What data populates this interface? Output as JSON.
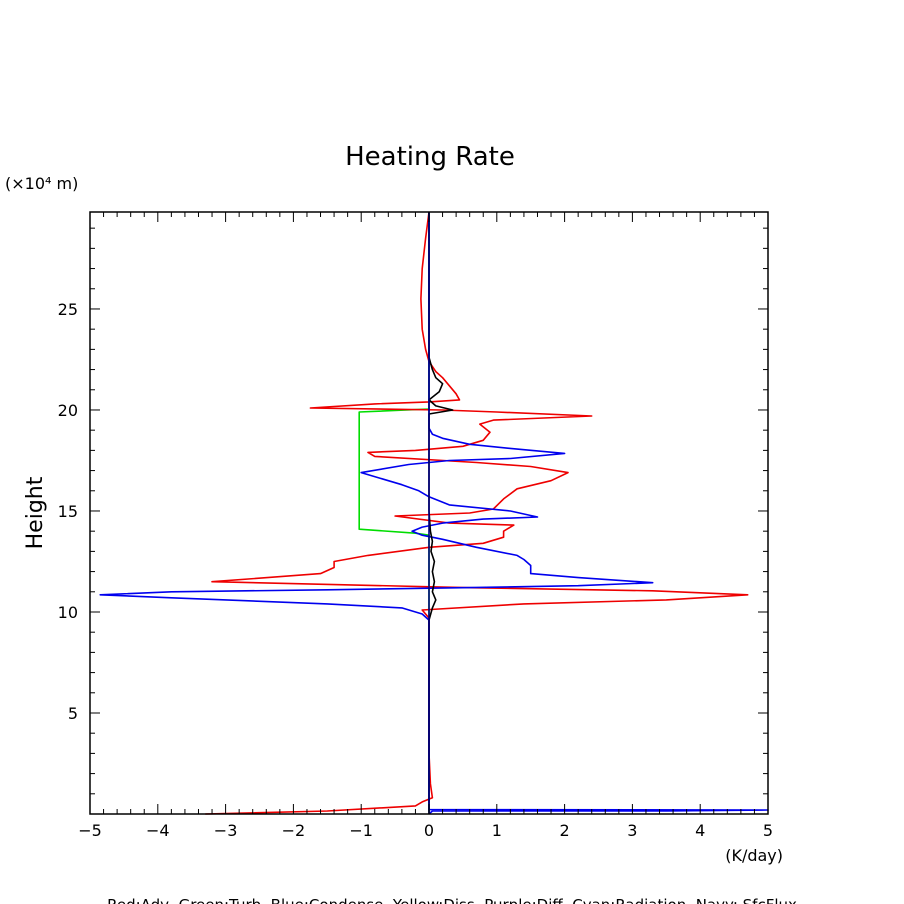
{
  "chart_data": {
    "type": "line",
    "title": "Heating Rate",
    "ylabel": "Height",
    "yunit": "(×10⁴ m)",
    "xunit": "(K/day)",
    "legend": "Red:Adv  Green:Turb  Blue:Condense  Yellow:Diss  Purple:Diff  Cyan:Radiation  Navy: SfcFlux",
    "xlim": [
      -5,
      5
    ],
    "ylim": [
      0,
      29.8
    ],
    "xticks": [
      -5,
      -4,
      -3,
      -2,
      -1,
      0,
      1,
      2,
      3,
      4,
      5
    ],
    "yticks": [
      5,
      10,
      15,
      20,
      25
    ],
    "grid": false,
    "series": [
      {
        "name": "Green:Turb",
        "color": "#00dd00",
        "points": [
          [
            0,
            0.1
          ],
          [
            0,
            13.8
          ],
          [
            -0.2,
            13.9
          ],
          [
            -1.03,
            14.1
          ],
          [
            -1.03,
            19.9
          ],
          [
            0.0,
            20.05
          ],
          [
            0,
            20.1
          ],
          [
            0,
            29.8
          ]
        ]
      },
      {
        "name": "Red:Adv",
        "color": "#ee0000",
        "points": [
          [
            -3.3,
            0.0
          ],
          [
            -1.5,
            0.15
          ],
          [
            -0.2,
            0.4
          ],
          [
            -0.1,
            0.6
          ],
          [
            0.05,
            0.8
          ],
          [
            0.02,
            1.5
          ],
          [
            0,
            3
          ],
          [
            0,
            6
          ],
          [
            0,
            9
          ],
          [
            0.0,
            9.7
          ],
          [
            -0.1,
            10.1
          ],
          [
            1.4,
            10.4
          ],
          [
            3.5,
            10.6
          ],
          [
            4.7,
            10.85
          ],
          [
            3.3,
            11.05
          ],
          [
            0.6,
            11.2
          ],
          [
            -3.2,
            11.5
          ],
          [
            -1.6,
            11.9
          ],
          [
            -1.4,
            12.2
          ],
          [
            -1.4,
            12.5
          ],
          [
            -0.9,
            12.8
          ],
          [
            0.0,
            13.2
          ],
          [
            0.8,
            13.4
          ],
          [
            1.1,
            13.7
          ],
          [
            1.1,
            14.0
          ],
          [
            1.25,
            14.3
          ],
          [
            0.3,
            14.4
          ],
          [
            -0.5,
            14.75
          ],
          [
            0.6,
            14.9
          ],
          [
            0.95,
            15.1
          ],
          [
            1.1,
            15.6
          ],
          [
            1.3,
            16.1
          ],
          [
            1.8,
            16.5
          ],
          [
            2.05,
            16.9
          ],
          [
            1.5,
            17.2
          ],
          [
            0.7,
            17.4
          ],
          [
            -0.8,
            17.7
          ],
          [
            -0.9,
            17.9
          ],
          [
            -0.2,
            18.0
          ],
          [
            0.5,
            18.2
          ],
          [
            0.8,
            18.5
          ],
          [
            0.9,
            18.9
          ],
          [
            0.75,
            19.3
          ],
          [
            0.95,
            19.5
          ],
          [
            2.4,
            19.7
          ],
          [
            1.0,
            19.9
          ],
          [
            0.2,
            20.0
          ],
          [
            -1.75,
            20.1
          ],
          [
            -0.8,
            20.3
          ],
          [
            0.0,
            20.4
          ],
          [
            0.45,
            20.5
          ],
          [
            0.4,
            20.8
          ],
          [
            0.3,
            21.2
          ],
          [
            0.2,
            21.6
          ],
          [
            0.1,
            21.9
          ],
          [
            0.0,
            22.4
          ],
          [
            -0.05,
            23.0
          ],
          [
            -0.1,
            24
          ],
          [
            -0.12,
            25.5
          ],
          [
            -0.1,
            27
          ],
          [
            -0.05,
            28.5
          ],
          [
            0,
            29.8
          ]
        ]
      },
      {
        "name": "Blue:Condense",
        "color": "#0000ee",
        "points": [
          [
            0,
            0
          ],
          [
            0.05,
            0.15
          ],
          [
            3.5,
            0.15
          ],
          [
            5,
            0.2
          ],
          [
            0,
            0.22
          ],
          [
            0,
            9.6
          ],
          [
            -0.1,
            9.9
          ],
          [
            -0.4,
            10.2
          ],
          [
            -1.5,
            10.4
          ],
          [
            -3.8,
            10.7
          ],
          [
            -4.85,
            10.85
          ],
          [
            -3.8,
            11.0
          ],
          [
            -1.5,
            11.1
          ],
          [
            0.5,
            11.2
          ],
          [
            2.2,
            11.3
          ],
          [
            3.3,
            11.45
          ],
          [
            2.2,
            11.7
          ],
          [
            1.5,
            11.9
          ],
          [
            1.5,
            12.3
          ],
          [
            1.4,
            12.6
          ],
          [
            1.3,
            12.8
          ],
          [
            0.7,
            13.2
          ],
          [
            0.2,
            13.6
          ],
          [
            -0.1,
            13.8
          ],
          [
            -0.25,
            14.0
          ],
          [
            -0.1,
            14.2
          ],
          [
            0.2,
            14.4
          ],
          [
            0.8,
            14.6
          ],
          [
            1.6,
            14.7
          ],
          [
            1.2,
            15.0
          ],
          [
            0.3,
            15.3
          ],
          [
            0.0,
            15.7
          ],
          [
            -0.15,
            16.0
          ],
          [
            -0.4,
            16.3
          ],
          [
            -1.0,
            16.9
          ],
          [
            -0.3,
            17.3
          ],
          [
            0.3,
            17.5
          ],
          [
            1.2,
            17.6
          ],
          [
            2.0,
            17.85
          ],
          [
            1.2,
            18.1
          ],
          [
            0.6,
            18.3
          ],
          [
            0.2,
            18.6
          ],
          [
            0.05,
            18.8
          ],
          [
            0.0,
            19.1
          ],
          [
            0.0,
            19.5
          ],
          [
            0.0,
            20.0
          ],
          [
            0,
            20.5
          ],
          [
            0,
            29.8
          ]
        ]
      },
      {
        "name": "Diss",
        "color": "#000000",
        "points": [
          [
            0,
            0
          ],
          [
            0,
            9.6
          ],
          [
            0.05,
            10.2
          ],
          [
            0.1,
            10.6
          ],
          [
            0.05,
            11.0
          ],
          [
            0.08,
            11.5
          ],
          [
            0.05,
            12.0
          ],
          [
            0.08,
            12.5
          ],
          [
            0.03,
            13.0
          ],
          [
            0.05,
            13.5
          ],
          [
            0.02,
            14.0
          ],
          [
            0.0,
            15
          ],
          [
            0.0,
            16
          ],
          [
            0.0,
            17
          ],
          [
            0.0,
            18
          ],
          [
            0.0,
            19
          ],
          [
            0.0,
            19.8
          ],
          [
            0.35,
            20.0
          ],
          [
            0.1,
            20.2
          ],
          [
            0.0,
            20.5
          ],
          [
            0.15,
            20.9
          ],
          [
            0.2,
            21.3
          ],
          [
            0.1,
            21.6
          ],
          [
            0.05,
            22.0
          ],
          [
            0.0,
            22.6
          ],
          [
            0.0,
            29.8
          ]
        ]
      },
      {
        "name": "Navy: SfcFlux",
        "color": "#000080",
        "points": [
          [
            0,
            0
          ],
          [
            0,
            29.8
          ]
        ]
      }
    ]
  }
}
